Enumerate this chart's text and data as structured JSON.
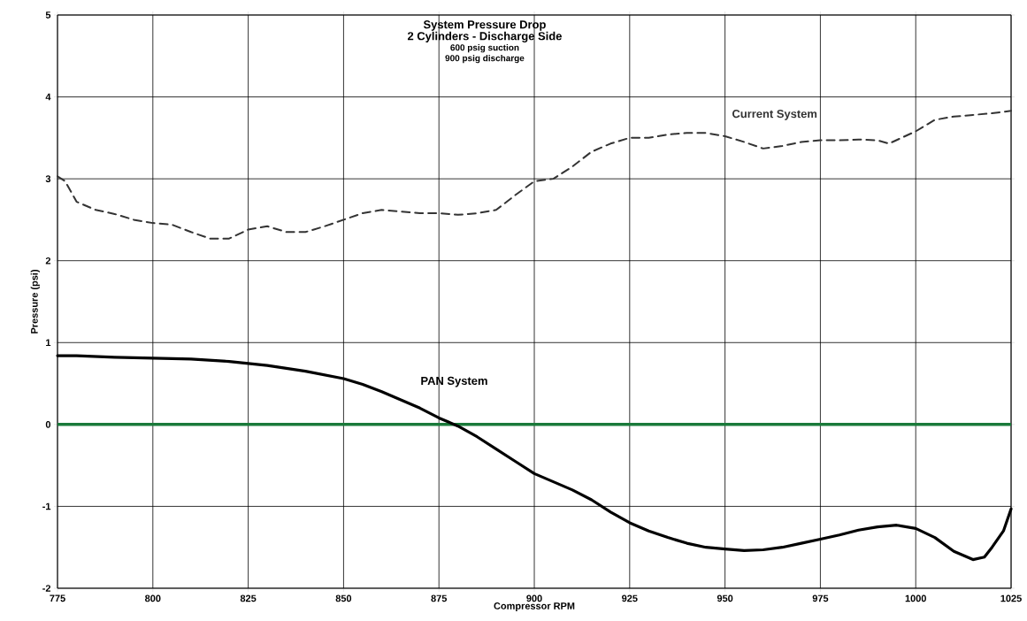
{
  "chart_data": {
    "type": "line",
    "title": "System Pressure Drop",
    "subtitle": "2 Cylinders - Discharge Side",
    "annotations": [
      "600 psig suction",
      "900 psig discharge"
    ],
    "xlabel": "Compressor RPM",
    "ylabel": "Pressure (psi)",
    "xlim": [
      775,
      1025
    ],
    "ylim": [
      -2,
      5
    ],
    "xticks": [
      775,
      800,
      825,
      850,
      875,
      900,
      925,
      950,
      975,
      1000,
      1025
    ],
    "yticks": [
      -2,
      -1,
      0,
      1,
      2,
      3,
      4,
      5
    ],
    "grid": true,
    "marker": "none",
    "ref_lines": [
      {
        "axis": "y",
        "value": 0,
        "color": "#1a7a3a"
      }
    ],
    "series": [
      {
        "name": "Current System",
        "color": "#333333",
        "line_style": "dashed",
        "x": [
          775,
          777,
          780,
          785,
          790,
          795,
          800,
          805,
          810,
          815,
          820,
          825,
          830,
          835,
          840,
          845,
          850,
          855,
          860,
          865,
          870,
          875,
          880,
          885,
          890,
          895,
          900,
          905,
          910,
          915,
          920,
          925,
          930,
          935,
          940,
          945,
          950,
          955,
          960,
          965,
          970,
          975,
          980,
          985,
          990,
          993,
          1000,
          1005,
          1010,
          1015,
          1020,
          1025
        ],
        "values": [
          3.03,
          2.97,
          2.72,
          2.62,
          2.57,
          2.5,
          2.46,
          2.44,
          2.35,
          2.27,
          2.27,
          2.38,
          2.42,
          2.35,
          2.35,
          2.42,
          2.5,
          2.58,
          2.62,
          2.6,
          2.58,
          2.58,
          2.56,
          2.58,
          2.62,
          2.8,
          2.97,
          3.0,
          3.15,
          3.33,
          3.43,
          3.5,
          3.5,
          3.54,
          3.56,
          3.56,
          3.52,
          3.45,
          3.37,
          3.4,
          3.45,
          3.47,
          3.47,
          3.48,
          3.47,
          3.43,
          3.58,
          3.72,
          3.76,
          3.78,
          3.8,
          3.83
        ]
      },
      {
        "name": "PAN System",
        "color": "#000000",
        "line_style": "solid",
        "x": [
          775,
          780,
          790,
          800,
          810,
          820,
          830,
          840,
          850,
          855,
          860,
          865,
          870,
          875,
          880,
          885,
          890,
          895,
          900,
          905,
          910,
          915,
          920,
          925,
          930,
          935,
          940,
          945,
          950,
          955,
          960,
          965,
          970,
          975,
          980,
          985,
          990,
          995,
          1000,
          1005,
          1010,
          1015,
          1018,
          1020,
          1023,
          1025
        ],
        "values": [
          0.84,
          0.84,
          0.82,
          0.81,
          0.8,
          0.77,
          0.72,
          0.65,
          0.56,
          0.49,
          0.4,
          0.3,
          0.2,
          0.08,
          -0.02,
          -0.15,
          -0.3,
          -0.45,
          -0.6,
          -0.7,
          -0.8,
          -0.92,
          -1.07,
          -1.2,
          -1.3,
          -1.38,
          -1.45,
          -1.5,
          -1.52,
          -1.54,
          -1.53,
          -1.5,
          -1.45,
          -1.4,
          -1.35,
          -1.29,
          -1.25,
          -1.23,
          -1.27,
          -1.38,
          -1.55,
          -1.65,
          -1.62,
          -1.5,
          -1.3,
          -1.03
        ]
      }
    ]
  }
}
